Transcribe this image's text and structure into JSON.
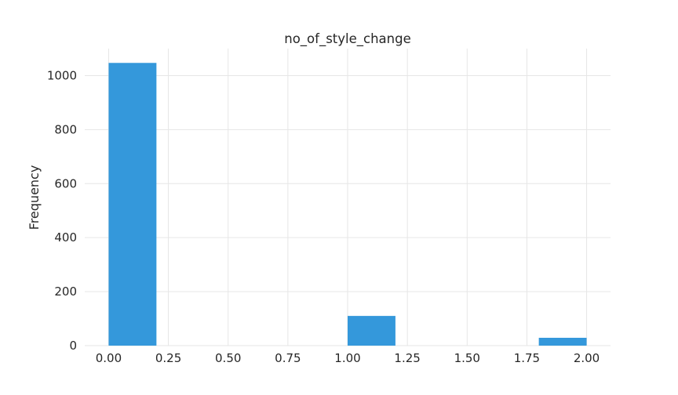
{
  "chart_data": {
    "type": "bar",
    "title": "no_of_style_change",
    "xlabel": "",
    "ylabel": "Frequency",
    "bins": [
      {
        "x0": 0.0,
        "x1": 0.2,
        "value": 1047
      },
      {
        "x0": 0.2,
        "x1": 0.4,
        "value": 0
      },
      {
        "x0": 0.4,
        "x1": 0.6,
        "value": 0
      },
      {
        "x0": 0.6,
        "x1": 0.8,
        "value": 0
      },
      {
        "x0": 0.8,
        "x1": 1.0,
        "value": 0
      },
      {
        "x0": 1.0,
        "x1": 1.2,
        "value": 110
      },
      {
        "x0": 1.2,
        "x1": 1.4,
        "value": 0
      },
      {
        "x0": 1.4,
        "x1": 1.6,
        "value": 0
      },
      {
        "x0": 1.6,
        "x1": 1.8,
        "value": 0
      },
      {
        "x0": 1.8,
        "x1": 2.0,
        "value": 29
      }
    ],
    "xlim": [
      -0.1,
      2.1
    ],
    "ylim": [
      0,
      1100
    ],
    "xticks": [
      "0.00",
      "0.25",
      "0.50",
      "0.75",
      "1.00",
      "1.25",
      "1.50",
      "1.75",
      "2.00"
    ],
    "yticks": [
      "0",
      "200",
      "400",
      "600",
      "800",
      "1000"
    ],
    "grid": true,
    "bar_color": "#3498db",
    "grid_color": "#e6e6e6"
  }
}
